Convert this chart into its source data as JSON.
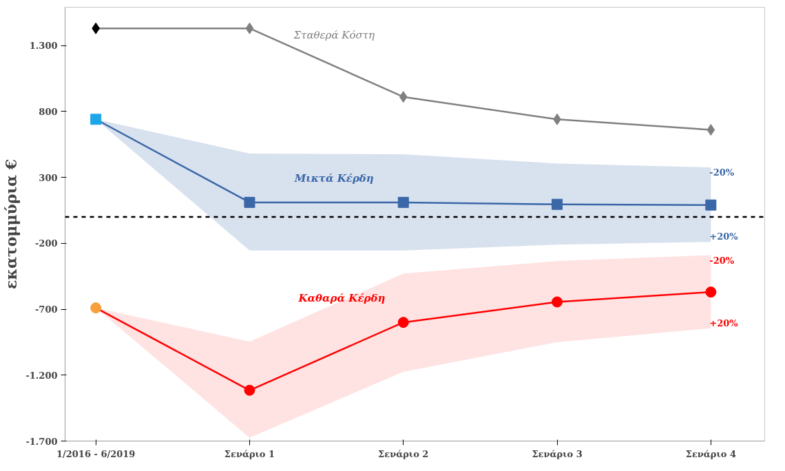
{
  "chart_data": {
    "type": "line",
    "ylabel": "εκατομμύρια €",
    "categories": [
      "1/2016 - 6/2019",
      "Σενάριο 1",
      "Σενάριο 2",
      "Σενάριο 3",
      "Σενάριο 4"
    ],
    "series": [
      {
        "name": "Σταθερά Κόστη",
        "color": "#808080",
        "colors": [
          "#000000",
          "#808080",
          "#808080",
          "#808080",
          "#808080"
        ],
        "marker": "diamond",
        "values": [
          1430,
          1430,
          910,
          740,
          660
        ]
      },
      {
        "name": "Μικτά Κέρδη",
        "color": "#3a67a8",
        "colors": [
          "#1fa6e8",
          "#3a67a8",
          "#3a67a8",
          "#3a67a8",
          "#3a67a8"
        ],
        "marker": "square",
        "values": [
          740,
          110,
          110,
          95,
          90
        ],
        "lower": [
          740,
          -255,
          -255,
          -210,
          -190
        ],
        "upper": [
          740,
          480,
          475,
          405,
          375
        ]
      },
      {
        "name": "Καθαρά Κέρδη",
        "color": "#ff0000",
        "colors": [
          "#f7a03c",
          "#ff0000",
          "#ff0000",
          "#ff0000",
          "#ff0000"
        ],
        "marker": "circle",
        "values": [
          -690,
          -1315,
          -800,
          -645,
          -570
        ],
        "lower": [
          -690,
          -1675,
          -1175,
          -950,
          -845
        ],
        "upper": [
          -690,
          -945,
          -430,
          -335,
          -290
        ]
      }
    ],
    "ref_lines": [
      {
        "axis": "y",
        "value": 0,
        "color": "#000000",
        "line_style": "dashed"
      }
    ],
    "annotations": [
      {
        "text": "-20%",
        "x": "Σενάριο 4",
        "y": 375
      },
      {
        "text": "+20%",
        "x": "Σενάριο 4",
        "y": -190
      },
      {
        "text": "-20%",
        "x": "Σενάριο 4",
        "y": -290
      },
      {
        "text": "+20%",
        "x": "Σενάριο 4",
        "y": -845
      }
    ],
    "ylim": [
      -1700,
      1590
    ],
    "yticks": [
      {
        "value": -1700,
        "label": "-1.700"
      },
      {
        "value": -1200,
        "label": "-1.200"
      },
      -700,
      -200,
      300,
      800,
      {
        "value": 1300,
        "label": "1.300"
      }
    ],
    "grid": false,
    "line_style": "solid"
  }
}
